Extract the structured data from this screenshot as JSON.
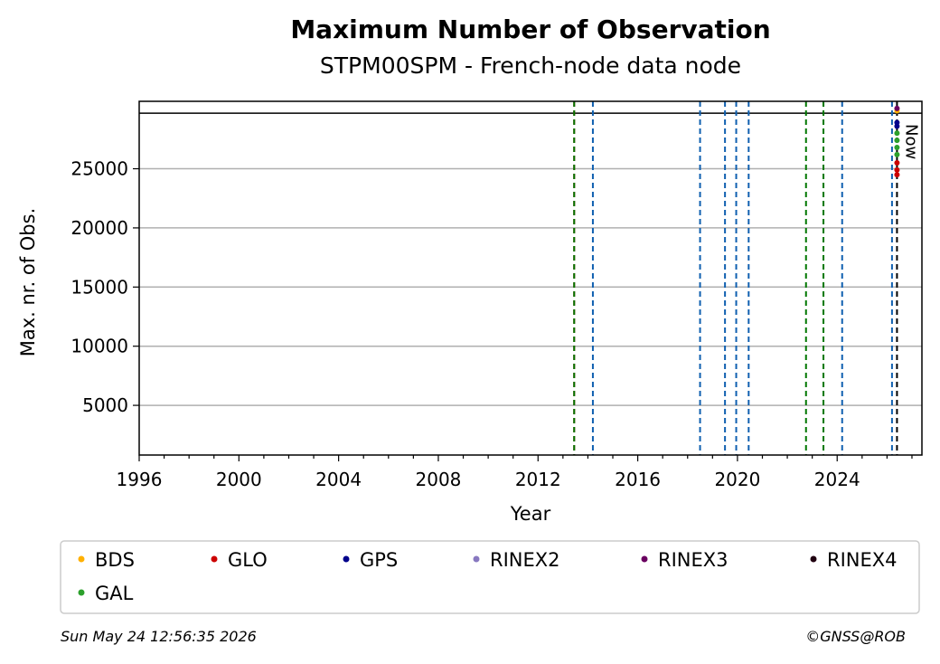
{
  "chart_data": {
    "type": "scatter",
    "title": "Maximum Number of Observation",
    "subtitle": "STPM00SPM - French-node data node",
    "xlabel": "Year",
    "ylabel": "Max. nr. of Obs.",
    "xlim": [
      1996,
      2027.4
    ],
    "ylim": [
      800,
      30700
    ],
    "x_ticks": [
      1996,
      2000,
      2004,
      2008,
      2012,
      2016,
      2020,
      2024
    ],
    "x_tick_labels": [
      "1996",
      "2000",
      "2004",
      "2008",
      "2012",
      "2016",
      "2020",
      "2024"
    ],
    "y_ticks": [
      5000,
      10000,
      15000,
      20000,
      25000
    ],
    "y_tick_labels": [
      "5000",
      "10000",
      "15000",
      "20000",
      "25000"
    ],
    "grid": "horizontal",
    "reference_line_y": 29700,
    "event_lines": [
      {
        "x": 2013.45,
        "color": "#cc0000"
      },
      {
        "x": 2013.45,
        "color": "#007700"
      },
      {
        "x": 2014.2,
        "color": "#1060b0"
      },
      {
        "x": 2018.5,
        "color": "#1060b0"
      },
      {
        "x": 2019.5,
        "color": "#1060b0"
      },
      {
        "x": 2019.95,
        "color": "#1060b0"
      },
      {
        "x": 2020.45,
        "color": "#1060b0"
      },
      {
        "x": 2022.75,
        "color": "#007700"
      },
      {
        "x": 2023.45,
        "color": "#007700"
      },
      {
        "x": 2024.2,
        "color": "#1060b0"
      },
      {
        "x": 2026.2,
        "color": "#1060b0"
      }
    ],
    "now_line": {
      "x": 2026.4,
      "label": "Now",
      "color": "#000000"
    },
    "series": [
      {
        "name": "BDS",
        "color": "#ffb000",
        "points": [
          [
            2026.4,
            29900
          ]
        ]
      },
      {
        "name": "GLO",
        "color": "#cc0000",
        "points": [
          [
            2026.4,
            25500
          ],
          [
            2026.4,
            24900
          ],
          [
            2026.4,
            24500
          ]
        ]
      },
      {
        "name": "GPS",
        "color": "#00008b",
        "points": [
          [
            2026.4,
            28900
          ],
          [
            2026.4,
            28600
          ]
        ]
      },
      {
        "name": "RINEX2",
        "color": "#8878c0",
        "points": []
      },
      {
        "name": "RINEX3",
        "color": "#6a0060",
        "points": [
          [
            2026.4,
            30100
          ]
        ]
      },
      {
        "name": "RINEX4",
        "color": "#200010",
        "points": []
      },
      {
        "name": "GAL",
        "color": "#2ca02c",
        "points": [
          [
            2026.4,
            28000
          ],
          [
            2026.4,
            27400
          ],
          [
            2026.4,
            26800
          ],
          [
            2026.4,
            26200
          ]
        ]
      }
    ],
    "legend_placement": "bottom"
  },
  "footer": {
    "timestamp": "Sun May 24 12:56:35 2026",
    "copyright": "©GNSS@ROB"
  }
}
